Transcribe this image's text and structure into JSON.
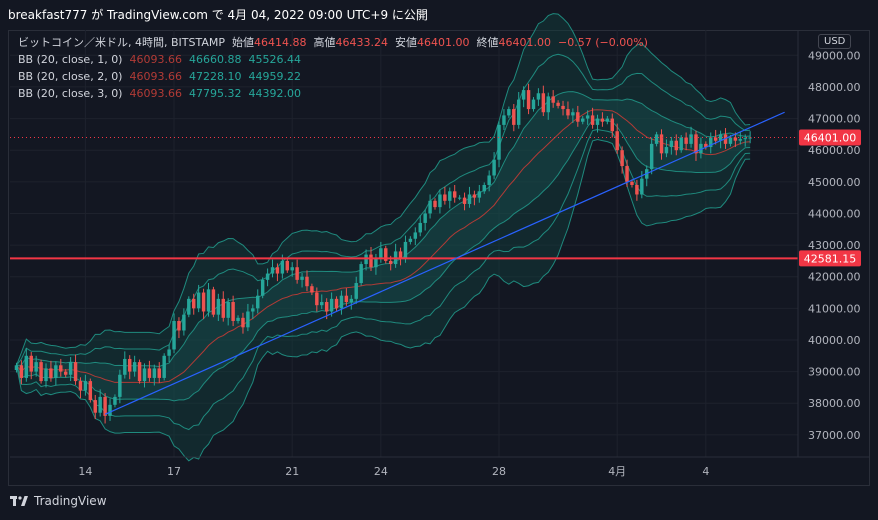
{
  "header": {
    "text": "breakfast777 が TradingView.com で 4月 04, 2022 09:00 UTC+9 に公開"
  },
  "legend": {
    "title": "ビットコイン／米ドル, 4時間, BITSTAMP",
    "open_label": "始値",
    "open": "46414.88",
    "high_label": "高値",
    "high": "46433.24",
    "low_label": "安値",
    "low": "46401.00",
    "close_label": "終値",
    "close": "46401.00",
    "change": "−0.57 (−0.00%)",
    "bb": [
      {
        "label": "BB (20, close, 1, 0)",
        "basis": "46093.66",
        "upper": "46660.88",
        "lower": "45526.44"
      },
      {
        "label": "BB (20, close, 2, 0)",
        "basis": "46093.66",
        "upper": "47228.10",
        "lower": "44959.22"
      },
      {
        "label": "BB (20, close, 3, 0)",
        "basis": "46093.66",
        "upper": "47795.32",
        "lower": "44392.00"
      }
    ]
  },
  "footer": {
    "brand": "TradingView"
  },
  "chart_data": {
    "type": "candlestick",
    "currency": "USD",
    "y_ticks": [
      "49000.00",
      "48000.00",
      "47000.00",
      "46000.00",
      "45000.00",
      "44000.00",
      "43000.00",
      "42000.00",
      "41000.00",
      "40000.00",
      "39000.00",
      "38000.00",
      "37000.00"
    ],
    "y_tick_values": [
      49000,
      48000,
      47000,
      46000,
      45000,
      44000,
      43000,
      42000,
      41000,
      40000,
      39000,
      38000,
      37000
    ],
    "ylim": [
      36300,
      49800
    ],
    "x_ticks": [
      {
        "label": "14",
        "index": 14
      },
      {
        "label": "17",
        "index": 32
      },
      {
        "label": "21",
        "index": 56
      },
      {
        "label": "24",
        "index": 74
      },
      {
        "label": "28",
        "index": 98
      },
      {
        "label": "4月",
        "index": 122
      },
      {
        "label": "4",
        "index": 140
      }
    ],
    "bar_count": 158,
    "last_price": 46401.0,
    "last_price_label": "46401.00",
    "horizontal_level": 42581.15,
    "horizontal_level_label": "42581.15",
    "trendline": {
      "from": {
        "index": 18,
        "price": 37650
      },
      "to": {
        "index": 156,
        "price": 47200
      }
    },
    "colors": {
      "up": "#26a69a",
      "down": "#ef5350",
      "basis": "#b23b36",
      "band": "#1f8a7e",
      "band_fill": "#12413f",
      "trendline": "#2962ff",
      "level": "#f23645"
    },
    "closes": [
      39200,
      38800,
      39500,
      39000,
      39300,
      38700,
      39100,
      38800,
      39200,
      39000,
      38900,
      39300,
      38700,
      38400,
      38700,
      38100,
      37700,
      38200,
      37600,
      37950,
      38200,
      38900,
      39400,
      39000,
      39300,
      38700,
      39100,
      38800,
      39100,
      38800,
      39500,
      39700,
      40600,
      40300,
      40800,
      41300,
      41000,
      41500,
      40900,
      41600,
      40800,
      41300,
      40700,
      41200,
      40600,
      40700,
      40400,
      40900,
      41000,
      41400,
      41900,
      42100,
      42300,
      42100,
      42500,
      42200,
      42300,
      41900,
      42000,
      41700,
      41500,
      41100,
      41200,
      40900,
      41300,
      41000,
      41400,
      41200,
      41300,
      41800,
      42400,
      42700,
      42300,
      42600,
      42900,
      42500,
      42400,
      42800,
      42600,
      43100,
      43200,
      43400,
      43700,
      44000,
      44400,
      44200,
      44600,
      44400,
      44700,
      44500,
      44500,
      44300,
      44600,
      44500,
      44700,
      44900,
      45200,
      45700,
      46800,
      47100,
      47300,
      46800,
      47600,
      47900,
      47300,
      47600,
      47800,
      47200,
      47700,
      47500,
      47400,
      47300,
      47100,
      47200,
      46900,
      47000,
      47100,
      46800,
      47000,
      46900,
      47000,
      46600,
      46000,
      45500,
      45000,
      44900,
      44600,
      45100,
      45400,
      46200,
      46500,
      45900,
      46100,
      46300,
      46000,
      46400,
      46200,
      46500,
      45900,
      46200,
      46100,
      46400,
      46300,
      46500,
      46200,
      46400,
      46300,
      46350,
      46380,
      46401
    ]
  }
}
